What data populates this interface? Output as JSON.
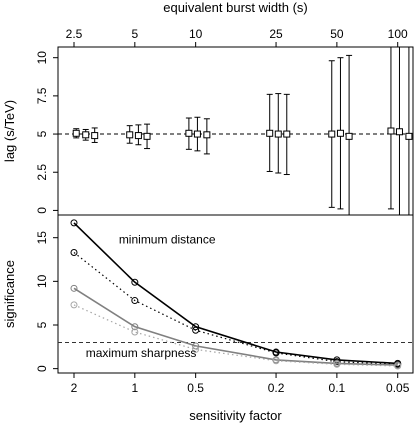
{
  "chart_data": [
    {
      "type": "scatter",
      "panel": "top",
      "top_axis_label": "equivalent burst width (s)",
      "top_ticks": [
        "2.5",
        "5",
        "10",
        "25",
        "50",
        "100"
      ],
      "top_tick_values": [
        2,
        1,
        0.5,
        0.2,
        0.1,
        0.05
      ],
      "ylabel": "lag (s/TeV)",
      "ylim": [
        -0.3,
        10.7
      ],
      "y_ticks": [
        "0",
        "2.5",
        "5",
        "7.5",
        "10"
      ],
      "y_tick_values": [
        0,
        2.5,
        5,
        7.5,
        10
      ],
      "x_scale": "log (reversed)",
      "xlim": [
        2.4,
        0.042
      ],
      "reference_line": 5,
      "series": [
        {
          "marker": "square",
          "points": [
            {
              "x": 1.95,
              "y": 5.05,
              "lo": 4.75,
              "hi": 5.35
            },
            {
              "x": 1.75,
              "y": 4.95,
              "lo": 4.6,
              "hi": 5.3
            },
            {
              "x": 1.58,
              "y": 4.9,
              "lo": 4.45,
              "hi": 5.4
            },
            {
              "x": 1.06,
              "y": 4.95,
              "lo": 4.4,
              "hi": 5.55
            },
            {
              "x": 0.96,
              "y": 4.9,
              "lo": 4.3,
              "hi": 5.6
            },
            {
              "x": 0.87,
              "y": 4.85,
              "lo": 4.05,
              "hi": 5.65
            },
            {
              "x": 0.54,
              "y": 5.05,
              "lo": 4.0,
              "hi": 6.05
            },
            {
              "x": 0.49,
              "y": 5.0,
              "lo": 3.9,
              "hi": 6.1
            },
            {
              "x": 0.44,
              "y": 4.95,
              "lo": 3.7,
              "hi": 6.0
            },
            {
              "x": 0.215,
              "y": 5.05,
              "lo": 2.55,
              "hi": 7.6
            },
            {
              "x": 0.195,
              "y": 5.0,
              "lo": 2.45,
              "hi": 7.65
            },
            {
              "x": 0.177,
              "y": 5.0,
              "lo": 2.35,
              "hi": 7.6
            },
            {
              "x": 0.106,
              "y": 5.0,
              "lo": 0.2,
              "hi": 9.8
            },
            {
              "x": 0.096,
              "y": 5.05,
              "lo": 0.1,
              "hi": 10.0
            },
            {
              "x": 0.087,
              "y": 4.85,
              "lo": -0.3,
              "hi": 10.15
            },
            {
              "x": 0.054,
              "y": 5.2,
              "lo": 0.1,
              "hi": 10.7
            },
            {
              "x": 0.049,
              "y": 5.15,
              "lo": -0.3,
              "hi": 10.7
            },
            {
              "x": 0.044,
              "y": 4.85,
              "lo": -0.3,
              "hi": 10.7
            }
          ]
        }
      ]
    },
    {
      "type": "line",
      "panel": "bottom",
      "xlabel": "sensitivity factor",
      "ylabel": "significance",
      "x_ticks": [
        "2",
        "1",
        "0.5",
        "0.2",
        "0.1",
        "0.05"
      ],
      "x_tick_values": [
        2,
        1,
        0.5,
        0.2,
        0.1,
        0.05
      ],
      "y_ticks": [
        "0",
        "5",
        "10",
        "15"
      ],
      "y_tick_values": [
        0,
        5,
        10,
        15
      ],
      "ylim": [
        -0.5,
        17.6
      ],
      "x_scale": "log (reversed)",
      "xlim": [
        2.4,
        0.042
      ],
      "reference_line": 3,
      "x": [
        2,
        1,
        0.5,
        0.2,
        0.1,
        0.05
      ],
      "series": [
        {
          "group": "minimum distance",
          "color": "#000000",
          "line": "solid",
          "values": [
            16.7,
            9.9,
            4.8,
            1.9,
            1.0,
            0.6
          ]
        },
        {
          "group": "minimum distance",
          "color": "#000000",
          "line": "dotted",
          "values": [
            13.3,
            7.8,
            4.4,
            1.8,
            0.8,
            0.5
          ]
        },
        {
          "group": "maximum sharpness",
          "color": "#808080",
          "line": "solid",
          "values": [
            9.2,
            4.8,
            2.6,
            1.0,
            0.6,
            0.4
          ]
        },
        {
          "group": "maximum sharpness",
          "color": "#a6a6a6",
          "line": "dotted",
          "values": [
            7.3,
            4.2,
            2.2,
            0.9,
            0.5,
            0.3
          ]
        }
      ],
      "annotations": [
        {
          "text": "minimum distance",
          "x": 1.2,
          "y": 14.7
        },
        {
          "text": "maximum sharpness",
          "x": 1.75,
          "y": 1.7
        }
      ]
    }
  ]
}
